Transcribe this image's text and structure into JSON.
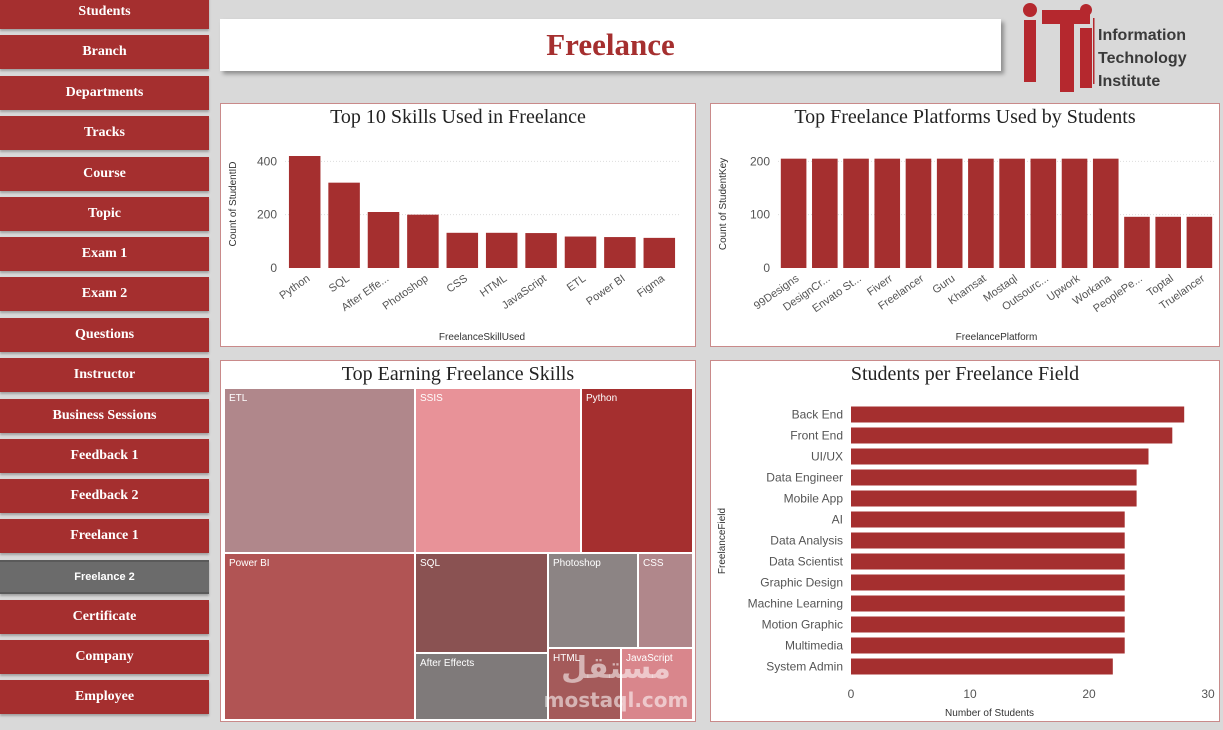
{
  "sidebar": {
    "items": [
      {
        "label": "Students"
      },
      {
        "label": "Branch"
      },
      {
        "label": "Departments"
      },
      {
        "label": "Tracks"
      },
      {
        "label": "Course"
      },
      {
        "label": "Topic"
      },
      {
        "label": "Exam 1"
      },
      {
        "label": "Exam 2"
      },
      {
        "label": "Questions"
      },
      {
        "label": "Instructor"
      },
      {
        "label": "Business Sessions"
      },
      {
        "label": "Feedback 1"
      },
      {
        "label": "Feedback 2"
      },
      {
        "label": "Freelance 1"
      },
      {
        "label": "Freelance 2",
        "active": true
      },
      {
        "label": "Certificate"
      },
      {
        "label": "Company"
      },
      {
        "label": "Employee"
      }
    ]
  },
  "header": {
    "title": "Freelance"
  },
  "logo": {
    "line1": "Information",
    "line2": "Technology",
    "line3": "Institute",
    "mark_color": "#b5282e"
  },
  "colors": {
    "bar": "#a52f2f",
    "accent": "#a52f2f"
  },
  "watermark": {
    "line1": "مستقل",
    "line2": "mostaql.com"
  },
  "chart_data": [
    {
      "type": "bar",
      "title": "Top 10 Skills Used in Freelance",
      "xlabel": "FreelanceSkillUsed",
      "ylabel": "Count of StudentID",
      "categories": [
        "Python",
        "SQL",
        "After Effe...",
        "Photoshop",
        "CSS",
        "HTML",
        "JavaScript",
        "ETL",
        "Power BI",
        "Figma"
      ],
      "values": [
        420,
        320,
        210,
        200,
        132,
        132,
        131,
        118,
        116,
        113
      ],
      "ylim": [
        0,
        480
      ],
      "yticks": [
        0,
        200,
        400
      ],
      "grid": true
    },
    {
      "type": "bar",
      "title": "Top Freelance Platforms Used by Students",
      "xlabel": "FreelancePlatform",
      "ylabel": "Count of StudentKey",
      "categories": [
        "99Designs",
        "DesignCr...",
        "Envato St...",
        "Fiverr",
        "Freelancer",
        "Guru",
        "Khamsat",
        "Mostaql",
        "Outsourc...",
        "Upwork",
        "Workana",
        "PeoplePe...",
        "Toptal",
        "Truelancer"
      ],
      "values": [
        205,
        205,
        205,
        205,
        205,
        205,
        205,
        205,
        205,
        205,
        205,
        96,
        96,
        96
      ],
      "ylim": [
        0,
        240
      ],
      "yticks": [
        0,
        100,
        200
      ],
      "grid": true
    },
    {
      "type": "treemap",
      "title": "Top Earning Freelance Skills",
      "items": [
        {
          "label": "ETL",
          "color": "#b0878b"
        },
        {
          "label": "SSIS",
          "color": "#e89298"
        },
        {
          "label": "Python",
          "color": "#a52f2f"
        },
        {
          "label": "Power BI",
          "color": "#b15454"
        },
        {
          "label": "SQL",
          "color": "#8a5252"
        },
        {
          "label": "Photoshop",
          "color": "#8c8484"
        },
        {
          "label": "CSS",
          "color": "#b0878b"
        },
        {
          "label": "After Effects",
          "color": "#7f7a7a"
        },
        {
          "label": "HTML",
          "color": "#a45a5a"
        },
        {
          "label": "JavaScript",
          "color": "#d9868c"
        }
      ]
    },
    {
      "type": "bar",
      "orientation": "horizontal",
      "title": "Students per Freelance Field",
      "xlabel": "Number of Students",
      "ylabel": "FreelanceField",
      "categories": [
        "Back End",
        "Front End",
        "UI/UX",
        "Data Engineer",
        "Mobile App",
        "AI",
        "Data Analysis",
        "Data Scientist",
        "Graphic Design",
        "Machine Learning",
        "Motion Graphic",
        "Multimedia",
        "System Admin"
      ],
      "values": [
        28,
        27,
        25,
        24,
        24,
        23,
        23,
        23,
        23,
        23,
        23,
        23,
        22
      ],
      "xlim": [
        0,
        30
      ],
      "xticks": [
        0,
        10,
        20,
        30
      ],
      "grid": false
    }
  ]
}
